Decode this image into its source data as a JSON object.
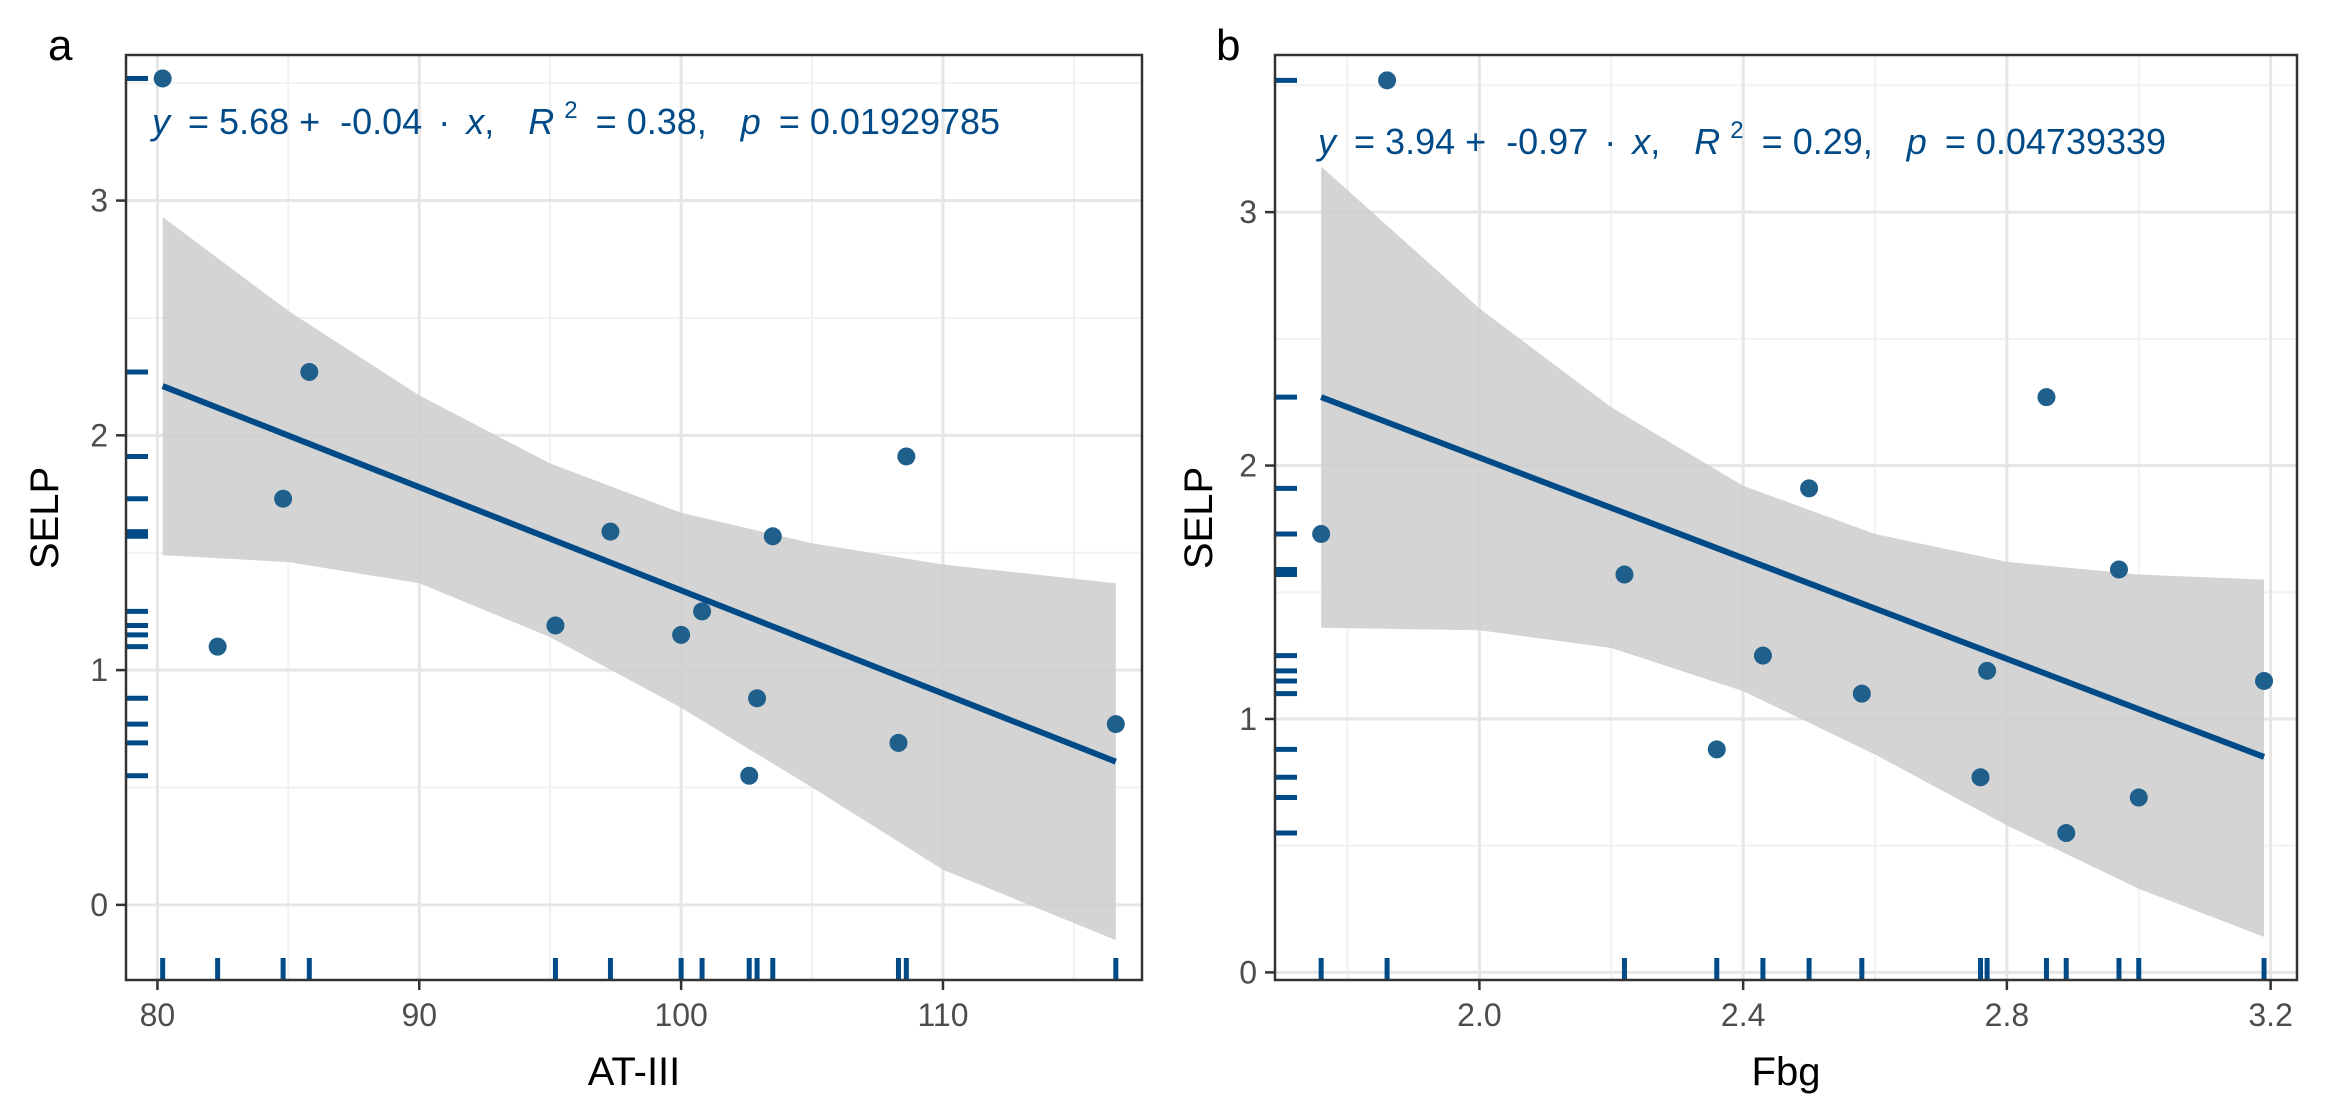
{
  "chart_data": [
    {
      "type": "scatter",
      "panel_label": "a",
      "xlabel": "AT-III",
      "ylabel": "SELP",
      "xlim": [
        78.8,
        117.6
      ],
      "ylim": [
        -0.32,
        3.62
      ],
      "xticks": [
        80,
        90,
        100,
        110
      ],
      "xtick_labels": [
        "80",
        "90",
        "100",
        "110"
      ],
      "yticks": [
        0,
        1,
        2,
        3
      ],
      "ytick_labels": [
        "0",
        "1",
        "2",
        "3"
      ],
      "grid": true,
      "annotation": {
        "y": "y",
        "intercept_part": "= 5.68 +",
        "slope_part": "-0.04",
        "x": "x",
        "r2": "R",
        "r2_sup": "2",
        "r2_value": "= 0.38,",
        "p": "p",
        "p_value": "= 0.01929785"
      },
      "regression": {
        "x0": 80.2,
        "y0": 2.21,
        "x1": 116.6,
        "y1": 0.61
      },
      "ci_band": {
        "x": [
          80.2,
          85,
          90,
          95,
          100,
          105,
          110,
          116.6
        ],
        "upper": [
          2.93,
          2.53,
          2.17,
          1.88,
          1.67,
          1.54,
          1.45,
          1.37
        ],
        "lower": [
          1.49,
          1.46,
          1.37,
          1.14,
          0.84,
          0.5,
          0.15,
          -0.15
        ]
      },
      "points": [
        {
          "x": 80.2,
          "y": 3.52
        },
        {
          "x": 82.3,
          "y": 1.1
        },
        {
          "x": 84.8,
          "y": 1.73
        },
        {
          "x": 85.8,
          "y": 2.27
        },
        {
          "x": 95.2,
          "y": 1.19
        },
        {
          "x": 97.3,
          "y": 1.59
        },
        {
          "x": 100.0,
          "y": 1.15
        },
        {
          "x": 100.8,
          "y": 1.25
        },
        {
          "x": 102.6,
          "y": 0.55
        },
        {
          "x": 102.9,
          "y": 0.88
        },
        {
          "x": 103.5,
          "y": 1.57
        },
        {
          "x": 108.3,
          "y": 0.69
        },
        {
          "x": 108.6,
          "y": 1.91
        },
        {
          "x": 116.6,
          "y": 0.77
        }
      ]
    },
    {
      "type": "scatter",
      "panel_label": "b",
      "xlabel": "Fbg",
      "ylabel": "SELP",
      "xlim": [
        1.69,
        3.24
      ],
      "ylim": [
        -0.03,
        3.62
      ],
      "xticks": [
        2.0,
        2.4,
        2.8,
        3.2
      ],
      "xtick_labels": [
        "2.0",
        "2.4",
        "2.8",
        "3.2"
      ],
      "yticks": [
        0,
        1,
        2,
        3
      ],
      "ytick_labels": [
        "0",
        "1",
        "2",
        "3"
      ],
      "grid": true,
      "annotation": {
        "y": "y",
        "intercept_part": "= 3.94 +",
        "slope_part": "-0.97",
        "x": "x",
        "r2": "R",
        "r2_sup": "2",
        "r2_value": "= 0.29,",
        "p": "p",
        "p_value": "= 0.04739339"
      },
      "regression": {
        "x0": 1.76,
        "y0": 2.27,
        "x1": 3.19,
        "y1": 0.85
      },
      "ci_band": {
        "x": [
          1.76,
          2.0,
          2.2,
          2.4,
          2.6,
          2.8,
          3.0,
          3.19
        ],
        "upper": [
          3.18,
          2.62,
          2.23,
          1.92,
          1.73,
          1.62,
          1.57,
          1.55
        ],
        "lower": [
          1.36,
          1.35,
          1.28,
          1.11,
          0.86,
          0.58,
          0.33,
          0.14
        ]
      },
      "points": [
        {
          "x": 1.76,
          "y": 1.73
        },
        {
          "x": 1.86,
          "y": 3.52
        },
        {
          "x": 2.22,
          "y": 1.57
        },
        {
          "x": 2.36,
          "y": 0.88
        },
        {
          "x": 2.43,
          "y": 1.25
        },
        {
          "x": 2.5,
          "y": 1.91
        },
        {
          "x": 2.58,
          "y": 1.1
        },
        {
          "x": 2.76,
          "y": 0.77
        },
        {
          "x": 2.77,
          "y": 1.19
        },
        {
          "x": 2.86,
          "y": 2.27
        },
        {
          "x": 2.89,
          "y": 0.55
        },
        {
          "x": 2.97,
          "y": 1.59
        },
        {
          "x": 3.0,
          "y": 0.69
        },
        {
          "x": 3.19,
          "y": 1.15
        }
      ]
    }
  ],
  "colors": {
    "point": "#1f5f8b",
    "line": "#004b87",
    "rug": "#004b87",
    "band": "#cccccc",
    "equation": "#004b87"
  }
}
